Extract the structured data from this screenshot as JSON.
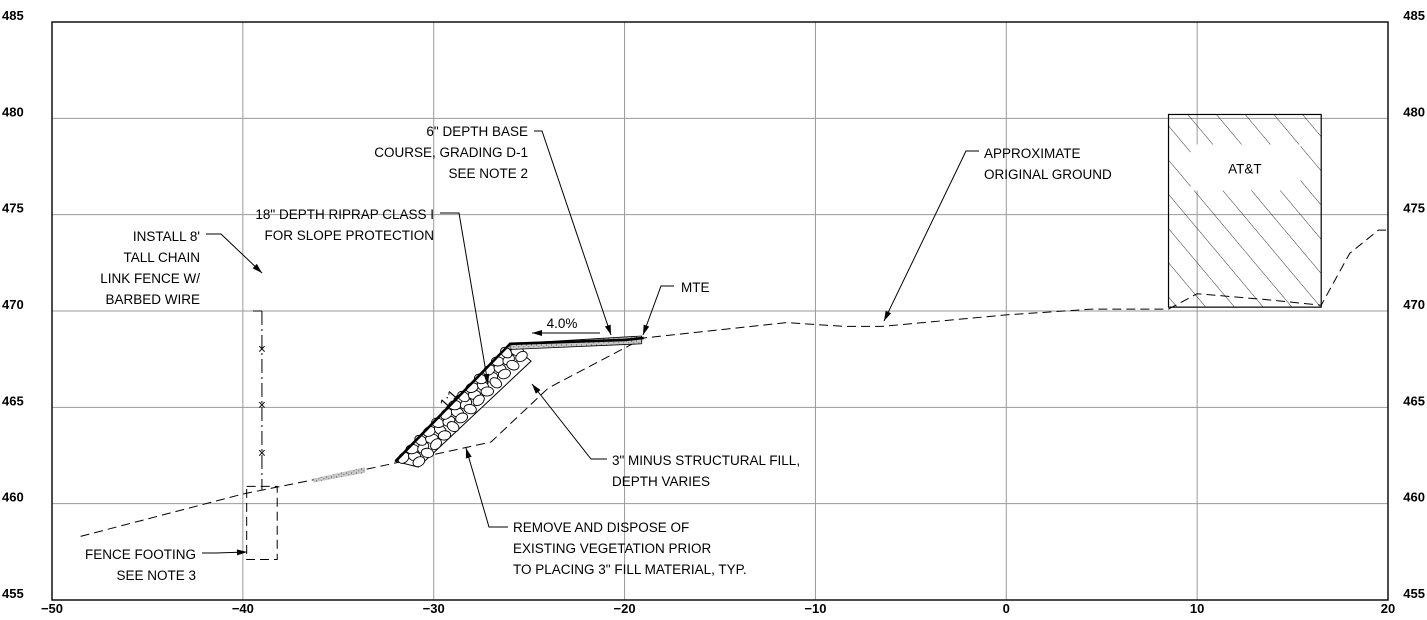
{
  "x_axis": {
    "range": [
      -50,
      20
    ],
    "ticks": [
      -50,
      -40,
      -30,
      -20,
      -10,
      0,
      10,
      20
    ],
    "tick_labels": [
      "−50",
      "−40",
      "−30",
      "−20",
      "−10",
      "0",
      "10",
      "20"
    ]
  },
  "y_axis": {
    "range": [
      455,
      485
    ],
    "ticks": [
      455,
      460,
      465,
      470,
      475,
      480,
      485
    ],
    "tick_labels": [
      "455",
      "460",
      "465",
      "470",
      "475",
      "480",
      "485"
    ]
  },
  "existing_ground": [
    [
      -48.5,
      458.3
    ],
    [
      -40,
      460.5
    ],
    [
      -33,
      461.9
    ],
    [
      -27,
      463.2
    ],
    [
      -24,
      466
    ],
    [
      -19,
      468.6
    ],
    [
      -11.5,
      469.4
    ],
    [
      -8.5,
      469.2
    ],
    [
      -6.5,
      469.2
    ],
    [
      0,
      469.8
    ],
    [
      4.5,
      470.1
    ],
    [
      8.5,
      470.1
    ],
    [
      10,
      470.9
    ],
    [
      13.5,
      470.6
    ],
    [
      16.5,
      470.3
    ],
    [
      18,
      473
    ],
    [
      19.5,
      474.2
    ],
    [
      20,
      474.2
    ]
  ],
  "proposed_surface": [
    [
      -32,
      462.2
    ],
    [
      -26,
      468.3
    ],
    [
      -20,
      468.5
    ],
    [
      -19,
      468.6
    ]
  ],
  "utility_box": {
    "x_range": [
      8.5,
      16.5
    ],
    "y_range": [
      470.2,
      480.2
    ],
    "label": "AT&T"
  },
  "fence": {
    "station": -39,
    "top": 470,
    "bottom": 460.7,
    "markers": [
      468,
      465.1,
      462.6
    ]
  },
  "fence_footing": {
    "x_range": [
      -39.8,
      -38.2
    ],
    "y_range": [
      457.1,
      460.9
    ]
  },
  "annotations": {
    "base_course": [
      "6\" DEPTH BASE",
      "COURSE, GRADING D-1",
      "SEE NOTE 2"
    ],
    "riprap": [
      "18\" DEPTH RIPRAP CLASS I",
      "FOR SLOPE PROTECTION"
    ],
    "fence": [
      "INSTALL 8'",
      "TALL CHAIN",
      "LINK FENCE W/",
      "BARBED WIRE"
    ],
    "ground": [
      "APPROXIMATE",
      "ORIGINAL GROUND"
    ],
    "mte": [
      "MTE"
    ],
    "structural_fill": [
      "3\" MINUS STRUCTURAL FILL,",
      "DEPTH VARIES"
    ],
    "vegetation": [
      "REMOVE AND DISPOSE OF",
      "EXISTING VEGETATION PRIOR",
      "TO PLACING 3\" FILL MATERIAL, TYP."
    ],
    "footing": [
      "FENCE FOOTING",
      "SEE NOTE 3"
    ],
    "grade": "4.0%",
    "slope": "1:1"
  },
  "colors": {
    "linework": "#000000",
    "grid": "#9a9a9a",
    "base_fill": "#b8b8b8"
  }
}
